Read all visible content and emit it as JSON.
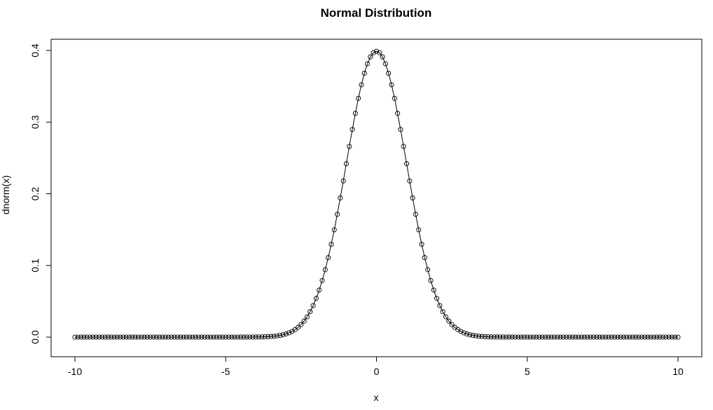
{
  "chart_data": {
    "type": "line",
    "title": "Normal Distribution",
    "xlabel": "x",
    "ylabel": "dnorm(x)",
    "xlim": [
      -10,
      10
    ],
    "ylim": [
      0,
      0.4
    ],
    "x_ticks": [
      -10,
      -5,
      0,
      5,
      10
    ],
    "x_tick_labels": [
      "-10",
      "-5",
      "0",
      "5",
      "10"
    ],
    "y_ticks": [
      0.0,
      0.1,
      0.2,
      0.3,
      0.4
    ],
    "y_tick_labels": [
      "0.0",
      "0.1",
      "0.2",
      "0.3",
      "0.4"
    ],
    "grid": false,
    "marker": "open-circle",
    "line_color": "#000000",
    "series": [
      {
        "x_start": -10,
        "x_end": 10,
        "x_step": 0.1,
        "function": "dnorm(x)"
      }
    ]
  }
}
